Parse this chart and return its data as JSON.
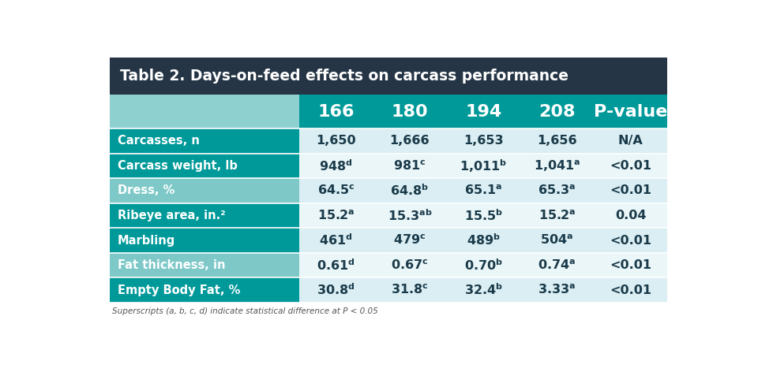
{
  "title": "Table 2. Days-on-feed effects on carcass performance",
  "columns": [
    "",
    "166",
    "180",
    "194",
    "208",
    "P-value"
  ],
  "rows": [
    {
      "label": "Carcasses, n",
      "values": [
        "1,650",
        "1,666",
        "1,653",
        "1,656",
        "N/A"
      ],
      "superscripts": [
        "",
        "",
        "",
        "",
        ""
      ]
    },
    {
      "label": "Carcass weight, lb",
      "values": [
        "948",
        "981",
        "1,011",
        "1,041",
        "<0.01"
      ],
      "superscripts": [
        "d",
        "c",
        "b",
        "a",
        ""
      ]
    },
    {
      "label": "Dress, %",
      "values": [
        "64.5",
        "64.8",
        "65.1",
        "65.3",
        "<0.01"
      ],
      "superscripts": [
        "c",
        "b",
        "a",
        "a",
        ""
      ]
    },
    {
      "label": "Ribeye area, in.²",
      "values": [
        "15.2",
        "15.3",
        "15.5",
        "15.2",
        "0.04"
      ],
      "superscripts": [
        "a",
        "ab",
        "b",
        "a",
        ""
      ]
    },
    {
      "label": "Marbling",
      "values": [
        "461",
        "479",
        "489",
        "504",
        "<0.01"
      ],
      "superscripts": [
        "d",
        "c",
        "b",
        "a",
        ""
      ]
    },
    {
      "label": "Fat thickness, in",
      "values": [
        "0.61",
        "0.67",
        "0.70",
        "0.74",
        "<0.01"
      ],
      "superscripts": [
        "d",
        "c",
        "b",
        "a",
        ""
      ]
    },
    {
      "label": "Empty Body Fat, %",
      "values": [
        "30.8",
        "31.8",
        "32.4",
        "3.33",
        "<0.01"
      ],
      "superscripts": [
        "d",
        "c",
        "b",
        "a",
        ""
      ]
    }
  ],
  "footnote": "Superscripts (a, b, c, d) indicate statistical difference at P < 0.05",
  "colors": {
    "title_bg": "#253545",
    "title_text": "#ffffff",
    "header_teal_bg": "#009999",
    "header_light_bg": "#8ecfcf",
    "header_text": "#ffffff",
    "label_col_bg_dark": "#009999",
    "label_col_bg_light": "#7ec8c8",
    "label_text": "#ffffff",
    "data_row_bg1": "#daeef3",
    "data_row_bg2": "#eaf6f8",
    "data_text": "#1a3a4a",
    "outer_bg": "#ffffff",
    "footnote_text": "#555555",
    "divider": "#ffffff"
  }
}
